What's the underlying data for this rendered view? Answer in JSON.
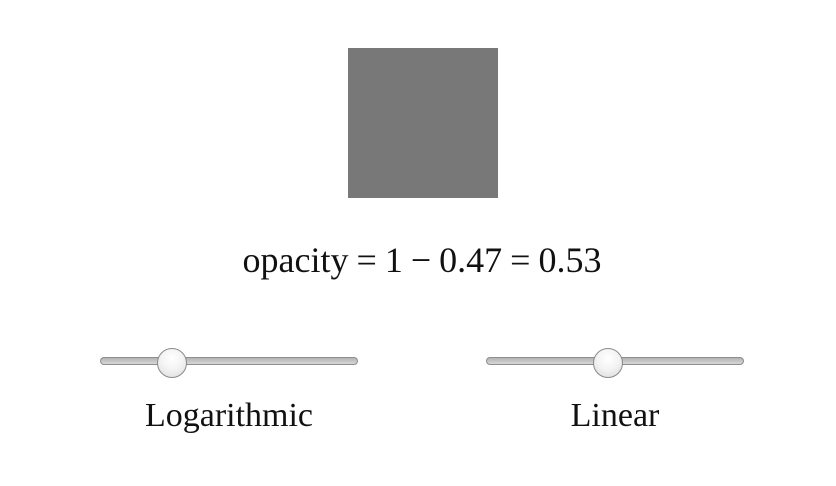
{
  "swatch": {
    "color": "#787878",
    "opacity": 0.53
  },
  "formula": {
    "variable": "opacity",
    "equals1": "=",
    "one": "1",
    "minus": "−",
    "subtracted": "0.47",
    "equals2": "=",
    "result": "0.53"
  },
  "sliders": {
    "logarithmic": {
      "label": "Logarithmic",
      "position": 0.25
    },
    "linear": {
      "label": "Linear",
      "position": 0.47
    }
  }
}
